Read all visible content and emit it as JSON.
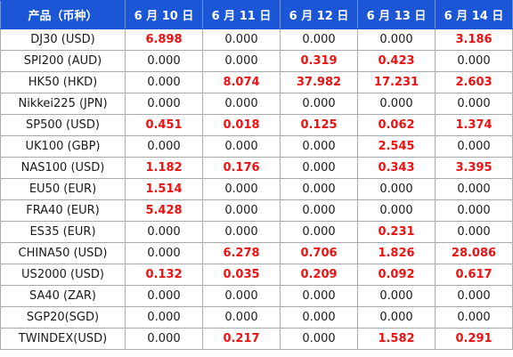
{
  "table": {
    "headers": [
      "产品（币种）",
      "6 月 10 日",
      "6 月 11 日",
      "6 月 12 日",
      "6 月 13 日",
      "6 月 14 日"
    ],
    "rows": [
      {
        "product": "DJ30 (USD)",
        "values": [
          "6.898",
          "0.000",
          "0.000",
          "0.000",
          "3.186"
        ]
      },
      {
        "product": "SPI200 (AUD)",
        "values": [
          "0.000",
          "0.000",
          "0.319",
          "0.423",
          "0.000"
        ]
      },
      {
        "product": "HK50 (HKD)",
        "values": [
          "0.000",
          "8.074",
          "37.982",
          "17.231",
          "2.603"
        ]
      },
      {
        "product": "Nikkei225 (JPN)",
        "values": [
          "0.000",
          "0.000",
          "0.000",
          "0.000",
          "0.000"
        ]
      },
      {
        "product": "SP500 (USD)",
        "values": [
          "0.451",
          "0.018",
          "0.125",
          "0.062",
          "1.374"
        ]
      },
      {
        "product": "UK100 (GBP)",
        "values": [
          "0.000",
          "0.000",
          "0.000",
          "2.545",
          "0.000"
        ]
      },
      {
        "product": "NAS100 (USD)",
        "values": [
          "1.182",
          "0.176",
          "0.000",
          "0.343",
          "3.395"
        ]
      },
      {
        "product": "EU50 (EUR)",
        "values": [
          "1.514",
          "0.000",
          "0.000",
          "0.000",
          "0.000"
        ]
      },
      {
        "product": "FRA40 (EUR)",
        "values": [
          "5.428",
          "0.000",
          "0.000",
          "0.000",
          "0.000"
        ]
      },
      {
        "product": "ES35 (EUR)",
        "values": [
          "0.000",
          "0.000",
          "0.000",
          "0.231",
          "0.000"
        ]
      },
      {
        "product": "CHINA50 (USD)",
        "values": [
          "0.000",
          "6.278",
          "0.706",
          "1.826",
          "28.086"
        ]
      },
      {
        "product": "US2000 (USD)",
        "values": [
          "0.132",
          "0.035",
          "0.209",
          "0.092",
          "0.617"
        ]
      },
      {
        "product": "SA40 (ZAR)",
        "values": [
          "0.000",
          "0.000",
          "0.000",
          "0.000",
          "0.000"
        ]
      },
      {
        "product": "SGP20(SGD)",
        "values": [
          "0.000",
          "0.000",
          "0.000",
          "0.000",
          "0.000"
        ]
      },
      {
        "product": "TWINDEX(USD)",
        "values": [
          "0.000",
          "0.217",
          "0.000",
          "1.582",
          "0.291"
        ]
      }
    ]
  },
  "colors": {
    "header_bg": "#1a56d6",
    "header_text": "#ffffff",
    "highlight_value": "#ee1111",
    "zero_value": "#1a1a1a",
    "border": "#a9a9a9"
  }
}
